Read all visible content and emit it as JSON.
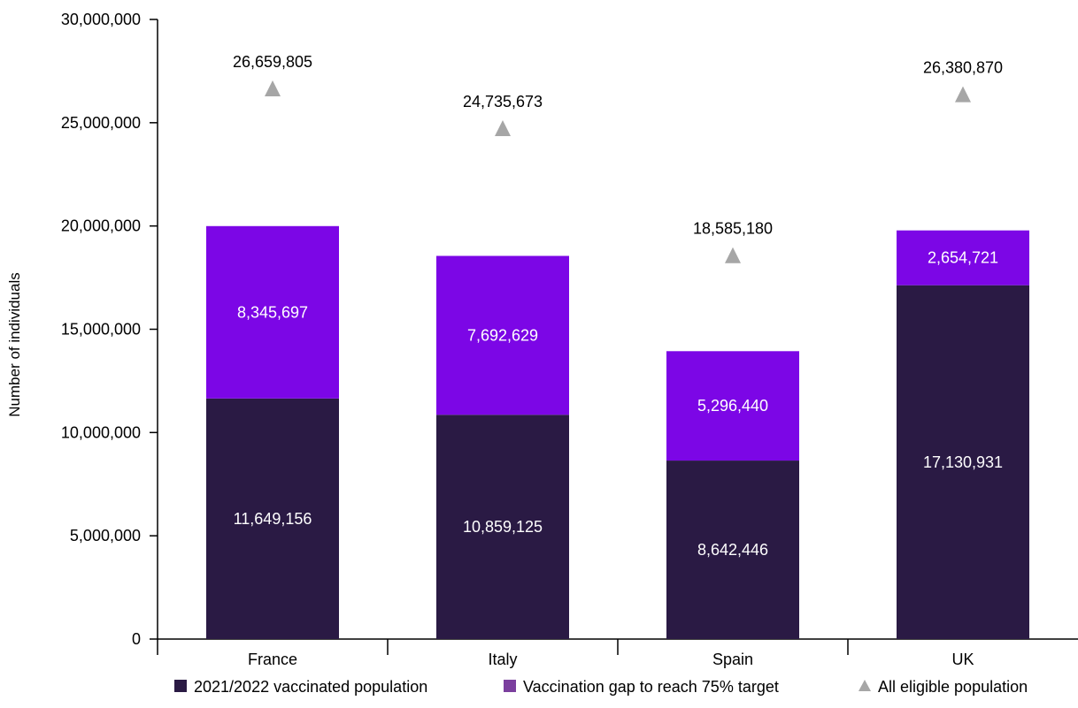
{
  "chart_data": {
    "type": "bar",
    "stacked": true,
    "categories": [
      "France",
      "Italy",
      "Spain",
      "UK"
    ],
    "series": [
      {
        "name": "2021/2022 vaccinated population",
        "values": [
          11649156,
          10859125,
          8642446,
          17130931
        ],
        "labels": [
          "11,649,156",
          "10,859,125",
          "8,642,446",
          "17,130,931"
        ],
        "color": "#2a1a44"
      },
      {
        "name": "Vaccination gap to reach 75% target",
        "values": [
          8345697,
          7692629,
          5296440,
          2654721
        ],
        "labels": [
          "8,345,697",
          "7,692,629",
          "5,296,440",
          "2,654,721"
        ],
        "color": "#7c06e6"
      }
    ],
    "markers": {
      "name": "All eligible population",
      "values": [
        26659805,
        24735673,
        18585180,
        26380870
      ],
      "labels": [
        "26,659,805",
        "24,735,673",
        "18,585,180",
        "26,380,870"
      ],
      "color": "#a6a6a6"
    },
    "legend": {
      "position": "bottom",
      "items": [
        {
          "label": "2021/2022 vaccinated population",
          "color": "#2a1a44",
          "shape": "square"
        },
        {
          "label": "Vaccination gap to reach 75% target",
          "color": "#7b3f9e",
          "shape": "square"
        },
        {
          "label": "All eligible population",
          "color": "#a6a6a6",
          "shape": "triangle"
        }
      ]
    },
    "ylabel": "Number of individuals",
    "xlabel": "",
    "ylim": [
      0,
      30000000
    ],
    "yticks": [
      0,
      5000000,
      10000000,
      15000000,
      20000000,
      25000000,
      30000000
    ],
    "ytick_labels": [
      "0",
      "5,000,000",
      "10,000,000",
      "15,000,000",
      "20,000,000",
      "25,000,000",
      "30,000,000"
    ],
    "grid": false
  }
}
